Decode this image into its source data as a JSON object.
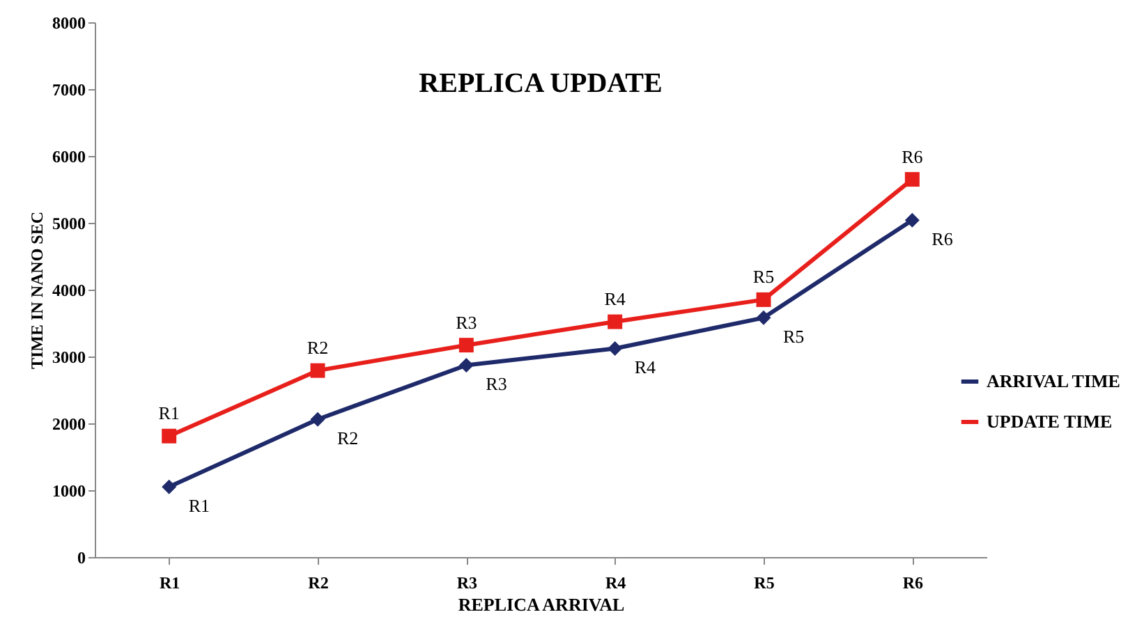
{
  "chart_data": {
    "type": "line",
    "title": "REPLICA UPDATE",
    "xlabel": "REPLICA ARRIVAL",
    "ylabel": "TIME IN NANO  SEC",
    "categories": [
      "R1",
      "R2",
      "R3",
      "R4",
      "R5",
      "R6"
    ],
    "series": [
      {
        "name": "ARRIVAL TIME",
        "color": "#1f2a6b",
        "marker": "diamond",
        "values": [
          1050,
          2060,
          2870,
          3120,
          3580,
          5040
        ]
      },
      {
        "name": "UPDATE TIME",
        "color": "#e8201c",
        "marker": "square",
        "values": [
          1810,
          2790,
          3170,
          3520,
          3850,
          5650
        ]
      }
    ],
    "annotations": [
      {
        "text": "R1",
        "x": "R1",
        "y": 1050
      },
      {
        "text": "R2",
        "x": "R2",
        "y": 2060
      },
      {
        "text": "R3",
        "x": "R3",
        "y": 2870
      },
      {
        "text": "R4",
        "x": "R4",
        "y": 3120
      },
      {
        "text": "R5",
        "x": "R5",
        "y": 3580
      },
      {
        "text": "R6",
        "x": "R6",
        "y": 5040
      },
      {
        "text": "R1",
        "x": "R1",
        "y": 1810
      },
      {
        "text": "R2",
        "x": "R2",
        "y": 2790
      },
      {
        "text": "R3",
        "x": "R3",
        "y": 3170
      },
      {
        "text": "R4",
        "x": "R4",
        "y": 3520
      },
      {
        "text": "R5",
        "x": "R5",
        "y": 3850
      },
      {
        "text": "R6",
        "x": "R6",
        "y": 5650
      }
    ],
    "ylim": [
      0,
      8000
    ],
    "yticks": [
      0,
      1000,
      2000,
      3000,
      4000,
      5000,
      6000,
      7000,
      8000
    ],
    "grid": false,
    "legend": "right",
    "line_style": "solid"
  }
}
